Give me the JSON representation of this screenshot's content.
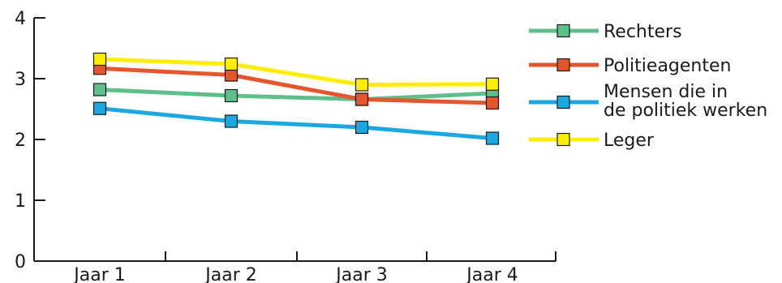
{
  "chart_data": {
    "type": "line",
    "title_fragment": "…",
    "categories": [
      "Jaar 1",
      "Jaar 2",
      "Jaar 3",
      "Jaar 4"
    ],
    "ylim": [
      0,
      4
    ],
    "yticks": [
      "0",
      "1",
      "2",
      "3",
      "4"
    ],
    "grid": false,
    "legend_position": "right",
    "series": [
      {
        "name": "Rechters",
        "color": "#5fbf8b",
        "values": [
          2.82,
          2.72,
          2.66,
          2.76
        ]
      },
      {
        "name": "Politieagenten",
        "color": "#e4572e",
        "values": [
          3.17,
          3.06,
          2.66,
          2.6
        ]
      },
      {
        "name": "Mensen die in de politiek werken",
        "name_lines": [
          "Mensen die in",
          "de politiek werken"
        ],
        "color": "#1ba8e0",
        "values": [
          2.51,
          2.3,
          2.2,
          2.02
        ]
      },
      {
        "name": "Leger",
        "color": "#ffee00",
        "values": [
          3.32,
          3.24,
          2.9,
          2.91
        ]
      }
    ]
  }
}
